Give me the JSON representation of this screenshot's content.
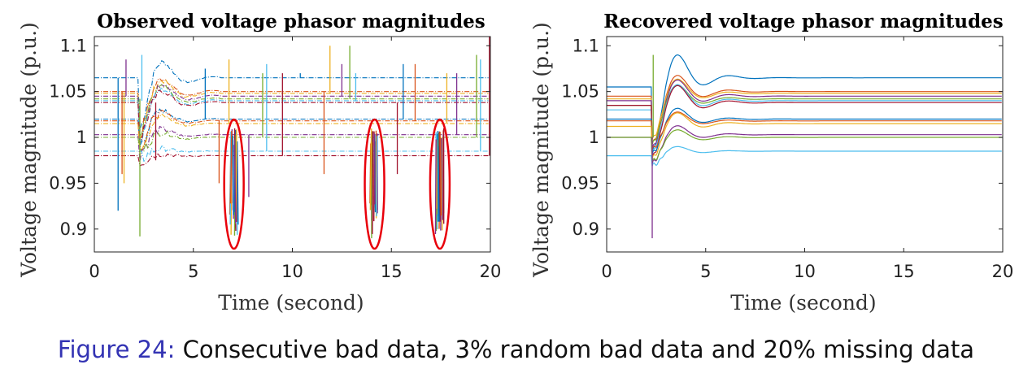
{
  "caption": {
    "label": "Figure 24:",
    "text": "Consecutive bad data, 3% random bad data and 20% missing data"
  },
  "colors": {
    "series": [
      "#0072BD",
      "#D95319",
      "#EDB120",
      "#7E2F8E",
      "#77AC30",
      "#4DBEEE",
      "#A2142F"
    ],
    "highlight": "#e8000b"
  },
  "chart_data": [
    {
      "type": "line",
      "title": "Observed voltage phasor magnitudes",
      "xlabel": "Time (second)",
      "ylabel": "Voltage magnitude (p.u.)",
      "xlim": [
        0,
        20
      ],
      "ylim": [
        0.875,
        1.11
      ],
      "xticks": [
        0,
        5,
        10,
        15,
        20
      ],
      "yticks": [
        0.9,
        0.95,
        1,
        1.05,
        1.1
      ],
      "xtick_labels": [
        "0",
        "5",
        "10",
        "15",
        "20"
      ],
      "ytick_labels": [
        "0.9",
        "0.95",
        "1",
        "1.05",
        "1.1"
      ],
      "grid": false,
      "disturbance_time": 2.3,
      "steady_levels": [
        1.065,
        1.05,
        1.048,
        1.045,
        1.042,
        1.04,
        1.038,
        1.02,
        1.018,
        1.015,
        1.003,
        1.0,
        0.985,
        0.98
      ],
      "spikes": [
        {
          "x": 1.2,
          "y": 0.92
        },
        {
          "x": 1.4,
          "y": 0.96
        },
        {
          "x": 1.5,
          "y": 0.95
        },
        {
          "x": 1.6,
          "y": 1.085
        },
        {
          "x": 2.3,
          "y": 0.892
        },
        {
          "x": 2.4,
          "y": 1.09
        },
        {
          "x": 3.1,
          "y": 0.975
        },
        {
          "x": 5.6,
          "y": 1.075
        },
        {
          "x": 6.3,
          "y": 0.95
        },
        {
          "x": 6.8,
          "y": 1.085
        },
        {
          "x": 7.8,
          "y": 0.935
        },
        {
          "x": 8.5,
          "y": 1.07
        },
        {
          "x": 8.7,
          "y": 1.08
        },
        {
          "x": 9.5,
          "y": 1.07
        },
        {
          "x": 10.4,
          "y": 1.07
        },
        {
          "x": 11.6,
          "y": 0.96
        },
        {
          "x": 11.9,
          "y": 1.1
        },
        {
          "x": 12.5,
          "y": 1.08
        },
        {
          "x": 12.9,
          "y": 1.1
        },
        {
          "x": 13.2,
          "y": 1.07
        },
        {
          "x": 15.3,
          "y": 0.96
        },
        {
          "x": 15.6,
          "y": 1.08
        },
        {
          "x": 16.2,
          "y": 1.08
        },
        {
          "x": 17.8,
          "y": 1.07
        },
        {
          "x": 18.3,
          "y": 1.07
        },
        {
          "x": 19.3,
          "y": 1.09
        },
        {
          "x": 19.5,
          "y": 1.085
        },
        {
          "x": 19.95,
          "y": 1.11
        }
      ],
      "bad_data_windows": [
        {
          "x_center": 7.05,
          "y_center": 0.949,
          "y_min": 0.879,
          "y_max": 1.02
        },
        {
          "x_center": 14.15,
          "y_center": 0.949,
          "y_min": 0.879,
          "y_max": 1.02
        },
        {
          "x_center": 17.45,
          "y_center": 0.949,
          "y_min": 0.879,
          "y_max": 1.02
        }
      ]
    },
    {
      "type": "line",
      "title": "Recovered voltage phasor magnitudes",
      "xlabel": "Time (second)",
      "ylabel": "Voltage magnitude (p.u.)",
      "xlim": [
        0,
        20
      ],
      "ylim": [
        0.875,
        1.11
      ],
      "xticks": [
        0,
        5,
        10,
        15,
        20
      ],
      "yticks": [
        0.9,
        0.95,
        1,
        1.05,
        1.1
      ],
      "xtick_labels": [
        "0",
        "5",
        "10",
        "15",
        "20"
      ],
      "ytick_labels": [
        "0.9",
        "0.95",
        "1",
        "1.05",
        "1.1"
      ],
      "grid": false,
      "disturbance_time": 2.3,
      "series": [
        {
          "pre": 1.055,
          "final": 1.065,
          "dip": 0.98
        },
        {
          "pre": 1.045,
          "final": 1.05,
          "dip": 0.99
        },
        {
          "pre": 1.042,
          "final": 1.048,
          "dip": 0.995
        },
        {
          "pre": 1.04,
          "final": 1.045,
          "dip": 0.985
        },
        {
          "pre": 1.035,
          "final": 1.042,
          "dip": 0.99
        },
        {
          "pre": 1.03,
          "final": 1.04,
          "dip": 0.98
        },
        {
          "pre": 1.035,
          "final": 1.038,
          "dip": 0.975
        },
        {
          "pre": 1.02,
          "final": 1.02,
          "dip": 0.98
        },
        {
          "pre": 1.018,
          "final": 1.018,
          "dip": 0.985
        },
        {
          "pre": 1.012,
          "final": 1.015,
          "dip": 0.975
        },
        {
          "pre": 1.0,
          "final": 1.003,
          "dip": 0.97
        },
        {
          "pre": 1.0,
          "final": 1.0,
          "dip": 0.972
        },
        {
          "pre": 0.98,
          "final": 0.985,
          "dip": 0.968
        }
      ],
      "spikes": [
        {
          "x": 2.3,
          "y": 0.89
        },
        {
          "x": 2.35,
          "y": 1.09
        }
      ]
    }
  ]
}
